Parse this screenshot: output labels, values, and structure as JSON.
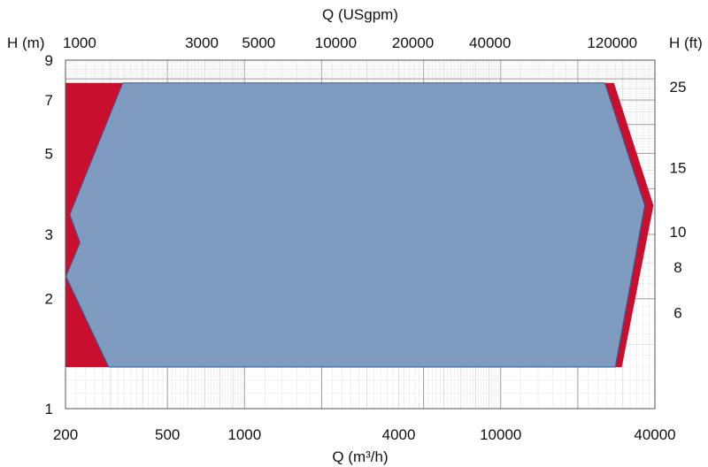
{
  "chart_data": {
    "type": "area",
    "x_axis": {
      "label": "Q (m³/h)",
      "scale": "log",
      "range": [
        200,
        40000
      ],
      "ticks": [
        200,
        500,
        1000,
        4000,
        10000,
        40000
      ],
      "tick_labels": [
        "200",
        "500",
        "1000",
        "4000",
        "10000",
        "40000"
      ]
    },
    "x2_axis": {
      "label": "Q (USgpm)",
      "position": "top",
      "ticks": [
        {
          "label": "1000",
          "m3h": 227
        },
        {
          "label": "3000",
          "m3h": 681
        },
        {
          "label": "5000",
          "m3h": 1136
        },
        {
          "label": "10000",
          "m3h": 2271
        },
        {
          "label": "20000",
          "m3h": 4542
        },
        {
          "label": "40000",
          "m3h": 9085
        },
        {
          "label": "120000",
          "m3h": 27255
        }
      ]
    },
    "y_axis": {
      "label": "H (m)",
      "scale": "log",
      "range": [
        1,
        9
      ],
      "ticks": [
        1,
        2,
        3,
        5,
        7,
        9
      ],
      "tick_labels": [
        "1",
        "2",
        "3",
        "5",
        "7",
        "9"
      ]
    },
    "y2_axis": {
      "label": "H (ft)",
      "position": "right",
      "ticks": [
        {
          "label": "25",
          "m": 7.62
        },
        {
          "label": "15",
          "m": 4.57
        },
        {
          "label": "10",
          "m": 3.05
        },
        {
          "label": "8",
          "m": 2.44
        },
        {
          "label": "6",
          "m": 1.83
        }
      ]
    },
    "grid": true,
    "series": [
      {
        "color": "#c8102e",
        "points": [
          [
            27700,
            7.8
          ],
          [
            39500,
            3.6
          ],
          [
            29700,
            1.3
          ],
          [
            200,
            1.3
          ],
          [
            200,
            7.8
          ]
        ]
      },
      {
        "color": "#7f9bc0",
        "points": [
          [
            335,
            7.8
          ],
          [
            25500,
            7.8
          ],
          [
            36500,
            3.6
          ],
          [
            28000,
            1.3
          ],
          [
            295,
            1.3
          ],
          [
            201,
            2.3
          ],
          [
            228,
            2.85
          ],
          [
            208,
            3.4
          ]
        ]
      }
    ]
  }
}
